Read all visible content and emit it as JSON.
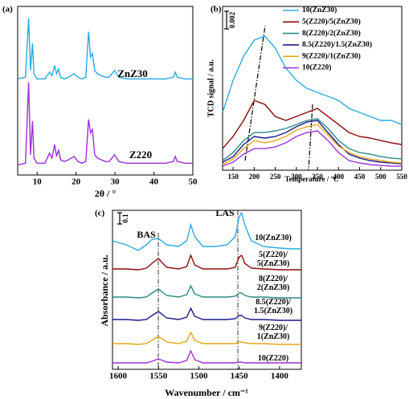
{
  "chart_data": [
    {
      "type": "line",
      "panel_label": "(a)",
      "x_label": "2θ / °",
      "xlim": [
        5,
        50
      ],
      "xticks": [
        10,
        20,
        30,
        40,
        50
      ],
      "ylim": [
        0,
        100
      ],
      "x": [
        5,
        7,
        7.8,
        8.3,
        8.8,
        9.2,
        10,
        12,
        13.2,
        13.8,
        14.5,
        15,
        15.5,
        16,
        17,
        18,
        19.5,
        20.5,
        21.5,
        22.5,
        23.2,
        23.7,
        24.2,
        24.8,
        25.5,
        26.5,
        27.5,
        28.5,
        29.9,
        31,
        33,
        35,
        37,
        40,
        43,
        45,
        45.5,
        46,
        48,
        50
      ],
      "series": [
        {
          "name": "ZnZ30",
          "color": "#29abe2",
          "values": [
            57,
            58,
            93,
            62,
            78,
            60,
            57,
            57,
            61,
            59,
            65,
            60,
            63,
            58,
            57,
            58,
            60,
            58,
            57,
            58,
            85,
            70,
            72,
            62,
            60,
            59,
            58,
            58,
            62,
            58,
            57,
            57,
            57,
            57,
            57,
            58,
            61,
            58,
            57,
            57
          ]
        },
        {
          "name": "Z220",
          "color": "#9b30d9",
          "values": [
            6,
            7,
            55,
            12,
            32,
            10,
            7,
            7,
            13,
            10,
            18,
            11,
            15,
            9,
            8,
            9,
            11,
            8,
            7,
            8,
            33,
            25,
            27,
            12,
            10,
            9,
            8,
            8,
            12,
            8,
            7,
            7,
            7,
            7,
            7,
            8,
            11,
            8,
            7,
            7
          ]
        }
      ]
    },
    {
      "type": "line",
      "panel_label": "(b)",
      "x_label": "Temperature / °C",
      "y_label": "TCD signal / a.u.",
      "scale_bar": "0.002",
      "xlim": [
        125,
        550
      ],
      "xticks": [
        150,
        200,
        250,
        300,
        350,
        400,
        450,
        500,
        550
      ],
      "ylim": [
        0,
        100
      ],
      "x": [
        125,
        150,
        175,
        200,
        225,
        250,
        275,
        300,
        325,
        350,
        375,
        400,
        425,
        450,
        475,
        500,
        525,
        550
      ],
      "series": [
        {
          "name": "10(ZnZ30)",
          "color": "#29abe2",
          "values": [
            35.3,
            54.9,
            69.6,
            79.4,
            81.9,
            74.5,
            62.3,
            54.9,
            50,
            47.5,
            45.1,
            42.6,
            37.7,
            35.3,
            32.8,
            30.4,
            30.4,
            27.9
          ]
        },
        {
          "name": "5(Z220)/5(ZnZ30)",
          "color": "#8b0a0a",
          "values": [
            13.2,
            20.6,
            30.4,
            42.6,
            40.2,
            32.8,
            30.4,
            32.8,
            35.3,
            37.7,
            32.8,
            27.9,
            23,
            20.6,
            19.6,
            18.1,
            16.7,
            15.7
          ]
        },
        {
          "name": "8(Z220)/2(ZnZ30)",
          "color": "#2a8a84",
          "values": [
            5.9,
            10.8,
            18.1,
            23,
            23,
            24,
            25.5,
            27.9,
            30.4,
            31.4,
            25.5,
            18.1,
            13.2,
            10.8,
            9.8,
            8.3,
            7.4,
            6.9
          ]
        },
        {
          "name": "8.5(Z220)/1.5(ZnZ30)",
          "color": "#1a1a8c",
          "values": [
            4.9,
            8.3,
            15.7,
            20.6,
            19.6,
            20.6,
            23,
            26.5,
            29.4,
            30.4,
            23,
            15.7,
            9.8,
            7.4,
            5.9,
            4.9,
            4.4,
            3.9
          ]
        },
        {
          "name": "9(Z220)/1(ZnZ30)",
          "color": "#e6a817",
          "values": [
            3.4,
            6.9,
            13.2,
            18.1,
            16.7,
            18.1,
            20.6,
            24.5,
            26.5,
            27.9,
            21.6,
            14.7,
            10.8,
            8.3,
            6.9,
            5.9,
            4.9,
            4.4
          ]
        },
        {
          "name": "10(Z220)",
          "color": "#9b30d9",
          "values": [
            2.5,
            4.9,
            9.8,
            13.2,
            13.2,
            14.2,
            16.7,
            20.6,
            23,
            24,
            18.1,
            10.8,
            5.9,
            4.4,
            3.4,
            2.9,
            2.5,
            2.5
          ]
        }
      ]
    },
    {
      "type": "line",
      "panel_label": "(c)",
      "x_label": "Wavenumber / cm⁻¹",
      "y_label": "Absorbance / a.u.",
      "scale_bar": "0.1",
      "annotations": [
        "BAS",
        "LAS"
      ],
      "xlim": [
        1607,
        1373
      ],
      "xticks": [
        1600,
        1550,
        1500,
        1450,
        1400
      ],
      "ylim": [
        0,
        198
      ],
      "x": [
        1607,
        1590,
        1575,
        1565,
        1558,
        1550,
        1540,
        1525,
        1515,
        1510,
        1505,
        1495,
        1480,
        1465,
        1455,
        1450,
        1447,
        1443,
        1435,
        1420,
        1400,
        1385,
        1373
      ],
      "series": [
        {
          "name": "10(ZnZ30)",
          "color": "#29abe2",
          "values": [
            160,
            155,
            148,
            155,
            162,
            163,
            155,
            153,
            160,
            180,
            165,
            153,
            153,
            155,
            165,
            190,
            195,
            180,
            160,
            153,
            151,
            150,
            150
          ]
        },
        {
          "name": "5(Z220)/\n5(ZnZ30)",
          "color": "#8b0a0a",
          "values": [
            125,
            125,
            124,
            126,
            132,
            138,
            127,
            125,
            128,
            142,
            130,
            125,
            125,
            125,
            127,
            140,
            142,
            132,
            126,
            125,
            124,
            124,
            124
          ]
        },
        {
          "name": "8(Z220)/\n2(ZnZ30)",
          "color": "#2a8a84",
          "values": [
            90,
            90,
            89,
            90,
            95,
            100,
            92,
            90,
            93,
            104,
            94,
            90,
            90,
            90,
            91,
            95,
            95,
            92,
            90,
            90,
            89,
            89,
            89
          ]
        },
        {
          "name": "8.5(Z220)/\n1.5(ZnZ30)",
          "color": "#1a1a8c",
          "values": [
            62,
            62,
            61,
            62,
            67,
            72,
            64,
            62,
            65,
            76,
            66,
            62,
            62,
            62,
            63,
            67,
            67,
            64,
            62,
            62,
            61,
            61,
            61
          ]
        },
        {
          "name": "9(Z220)/\n1(ZnZ30)",
          "color": "#e6a817",
          "values": [
            32,
            32,
            31,
            32,
            36,
            41,
            34,
            32,
            35,
            46,
            36,
            32,
            32,
            32,
            32,
            34,
            34,
            33,
            32,
            32,
            31,
            31,
            31
          ]
        },
        {
          "name": "10(Z220)",
          "color": "#9b30d9",
          "values": [
            8,
            8,
            8,
            8,
            10,
            13,
            9,
            8,
            11,
            23,
            12,
            8,
            8,
            8,
            8,
            9,
            9,
            8,
            8,
            8,
            8,
            8,
            8
          ]
        }
      ]
    }
  ]
}
